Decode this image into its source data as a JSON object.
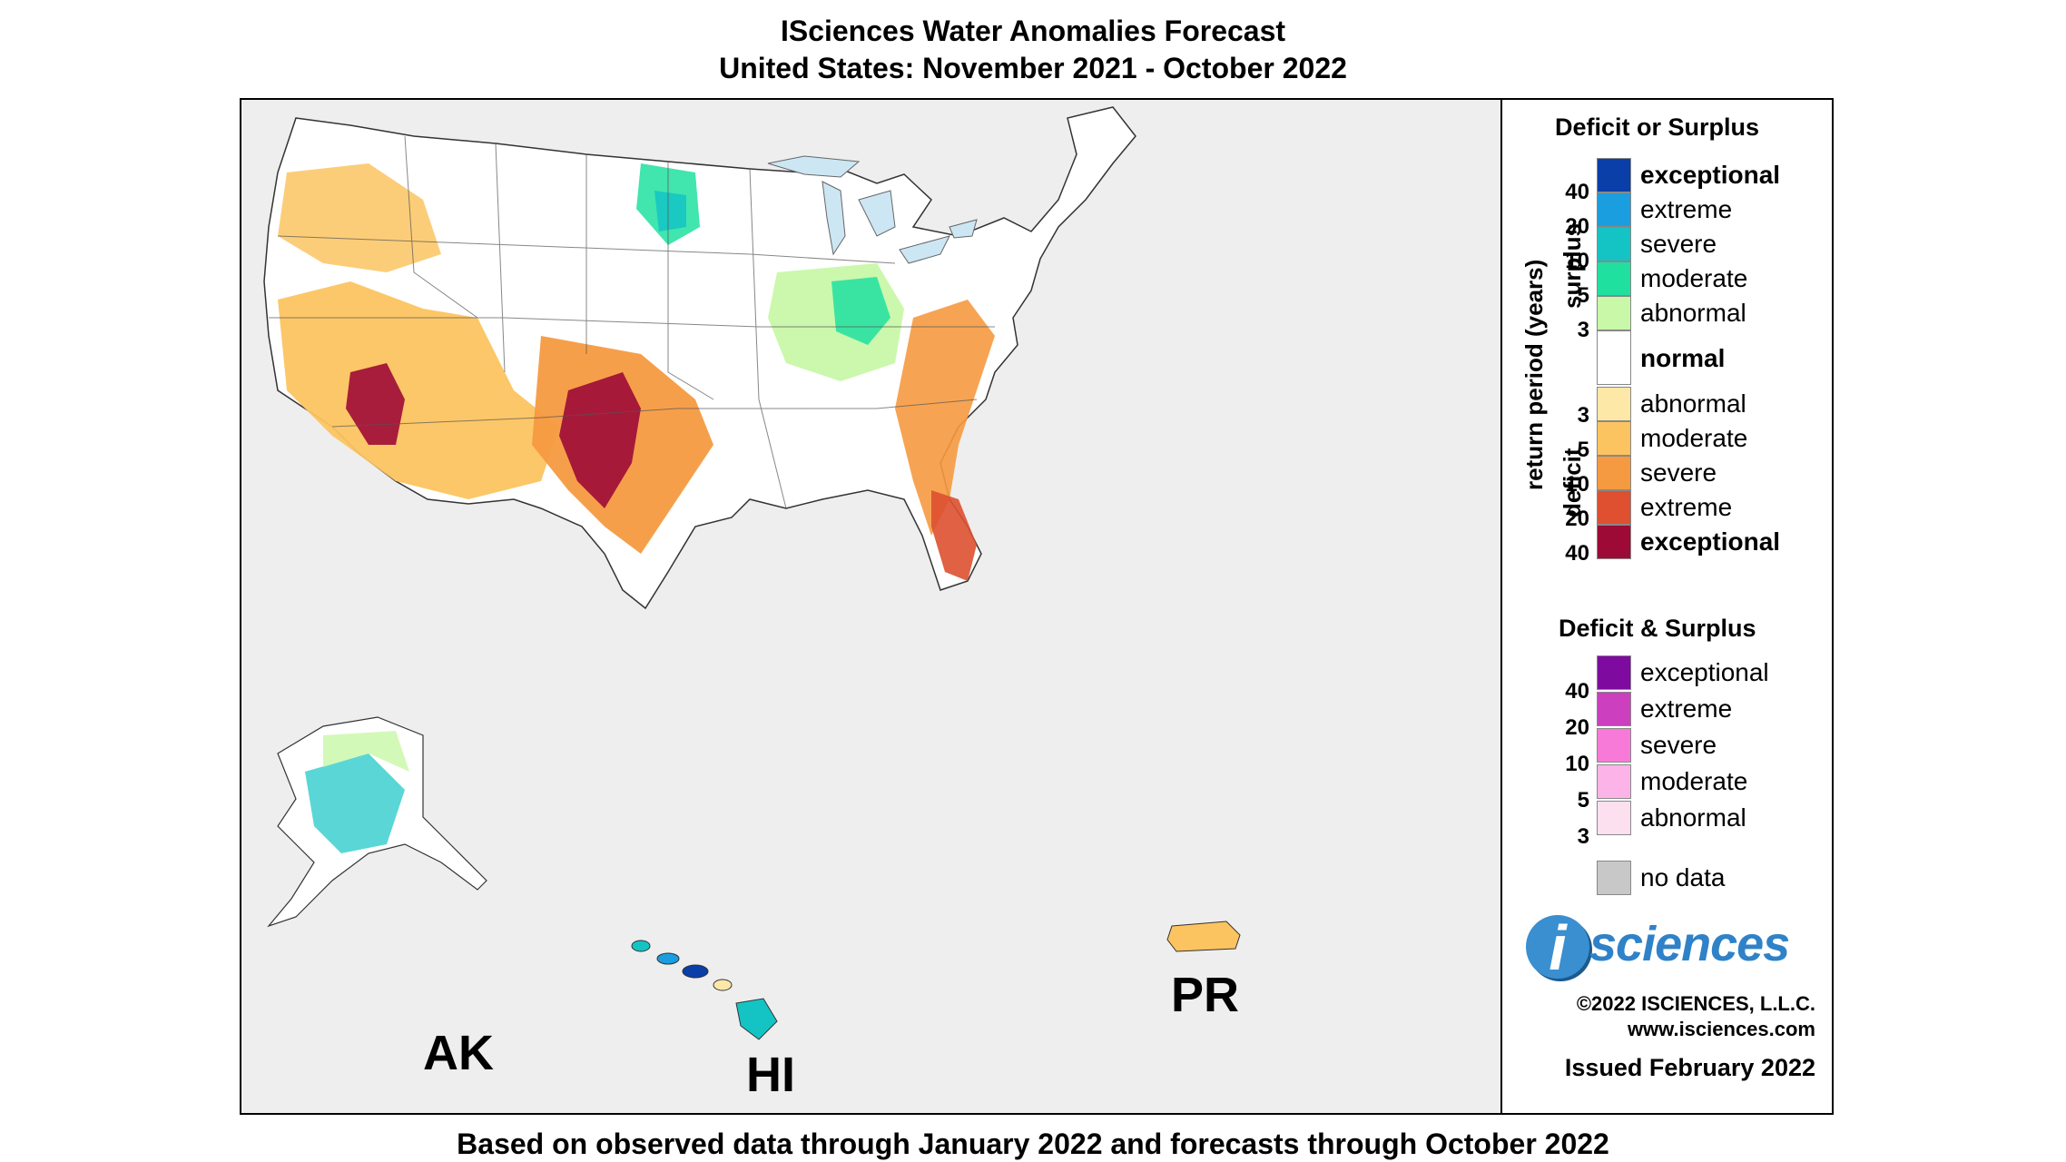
{
  "title_line1": "ISciences Water Anomalies Forecast",
  "title_line2": "United States: November 2021 - October 2022",
  "footer": "Based on observed data through January 2022 and forecasts through October 2022",
  "region_labels": {
    "ak": "AK",
    "hi": "HI",
    "pr": "PR"
  },
  "legend": {
    "heading1": "Deficit or Surplus",
    "axis_title": "return period (years)",
    "surplus_label": "surplus",
    "deficit_label": "deficit",
    "surplus": [
      {
        "label": "exceptional",
        "tick": "40",
        "color": "#0a3ea8",
        "bold": true
      },
      {
        "label": "extreme",
        "tick": "20",
        "color": "#1a9ee0",
        "bold": false
      },
      {
        "label": "severe",
        "tick": "10",
        "color": "#14c4c4",
        "bold": false
      },
      {
        "label": "moderate",
        "tick": "5",
        "color": "#20e0a0",
        "bold": false
      },
      {
        "label": "abnormal",
        "tick": "3",
        "color": "#c8f8a8",
        "bold": false
      }
    ],
    "normal": {
      "label": "normal",
      "color": "#ffffff"
    },
    "deficit": [
      {
        "label": "abnormal",
        "tick": "3",
        "color": "#fde8a8",
        "bold": false
      },
      {
        "label": "moderate",
        "tick": "5",
        "color": "#fcc460",
        "bold": false
      },
      {
        "label": "severe",
        "tick": "10",
        "color": "#f59a40",
        "bold": false
      },
      {
        "label": "extreme",
        "tick": "20",
        "color": "#de5030",
        "bold": false
      },
      {
        "label": "exceptional",
        "tick": "40",
        "color": "#9e0a36",
        "bold": true
      }
    ],
    "heading2": "Deficit & Surplus",
    "both": [
      {
        "label": "exceptional",
        "tick": "40",
        "color": "#7e0aa0"
      },
      {
        "label": "extreme",
        "tick": "20",
        "color": "#cc40c0"
      },
      {
        "label": "severe",
        "tick": "10",
        "color": "#f87ad8"
      },
      {
        "label": "moderate",
        "tick": "5",
        "color": "#fcb4e8"
      },
      {
        "label": "abnormal",
        "tick": "3",
        "color": "#fde0f0"
      }
    ],
    "nodata": {
      "label": "no data",
      "color": "#c8c8c8"
    }
  },
  "branding": {
    "logo_letter": "i",
    "logo_word": "sciences",
    "copyright": "©2022 ISCIENCES, L.L.C.",
    "website": "www.isciences.com",
    "issued": "Issued February 2022"
  },
  "colors": {
    "ocean": "#eeeeee",
    "land": "#ffffff",
    "lakes": "#cce6f4",
    "border": "#333333"
  }
}
